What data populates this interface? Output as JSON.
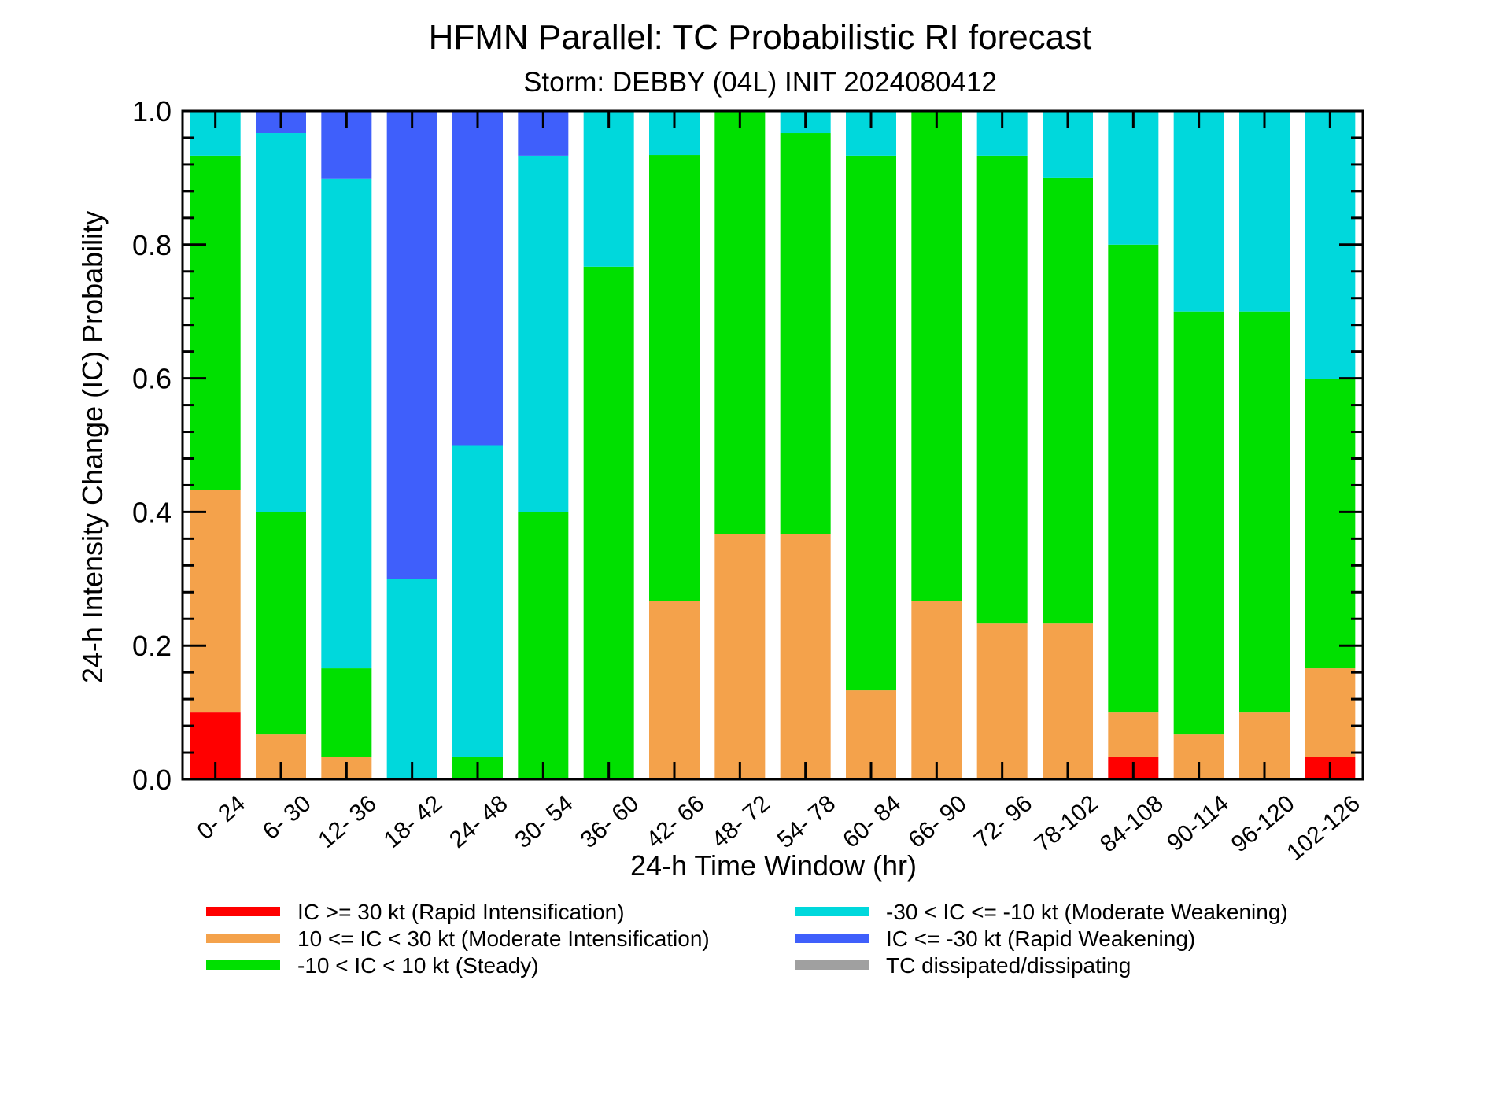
{
  "chart_data": {
    "type": "bar",
    "stacked": true,
    "title": "HFMN Parallel: TC Probabilistic RI forecast",
    "subtitle": "Storm: DEBBY (04L) INIT 2024080412",
    "xlabel": "24-h Time Window (hr)",
    "ylabel": "24-h Intensity Change (IC) Probability",
    "ylim": [
      0,
      1
    ],
    "yticks": [
      "0.0",
      "0.2",
      "0.4",
      "0.6",
      "0.8",
      "1.0"
    ],
    "grid": false,
    "legend_position": "bottom",
    "categories": [
      "0- 24",
      "6- 30",
      "12- 36",
      "18- 42",
      "24- 48",
      "30- 54",
      "36- 60",
      "42- 66",
      "48- 72",
      "54- 78",
      "60- 84",
      "66- 90",
      "72- 96",
      "78-102",
      "84-108",
      "90-114",
      "96-120",
      "102-126"
    ],
    "series": [
      {
        "name": "IC >= 30 kt (Rapid Intensification)",
        "color": "#ff0000",
        "values": [
          0.1,
          0,
          0,
          0,
          0,
          0,
          0,
          0,
          0,
          0,
          0,
          0,
          0,
          0,
          0.033,
          0,
          0,
          0.033
        ]
      },
      {
        "name": "10 <= IC < 30 kt (Moderate Intensification)",
        "color": "#f4a24b",
        "values": [
          0.333,
          0.067,
          0.033,
          0,
          0,
          0,
          0,
          0.267,
          0.367,
          0.367,
          0.133,
          0.267,
          0.233,
          0.233,
          0.067,
          0.067,
          0.1,
          0.133
        ]
      },
      {
        "name": "-10 < IC < 10 kt (Steady)",
        "color": "#00e000",
        "values": [
          0.5,
          0.333,
          0.133,
          0,
          0.033,
          0.4,
          0.767,
          0.667,
          0.633,
          0.6,
          0.8,
          0.733,
          0.7,
          0.667,
          0.7,
          0.633,
          0.6,
          0.433
        ]
      },
      {
        "name": "-30 < IC <= -10 kt (Moderate Weakening)",
        "color": "#00d8dc",
        "values": [
          0.067,
          0.567,
          0.733,
          0.3,
          0.467,
          0.533,
          0.233,
          0.067,
          0,
          0.033,
          0.067,
          0,
          0.067,
          0.1,
          0.2,
          0.3,
          0.3,
          0.4
        ]
      },
      {
        "name": "IC <= -30 kt (Rapid Weakening)",
        "color": "#3f5ffb",
        "values": [
          0,
          0.033,
          0.1,
          0.7,
          0.5,
          0.067,
          0,
          0,
          0,
          0,
          0,
          0,
          0,
          0,
          0,
          0,
          0,
          0
        ]
      },
      {
        "name": "TC dissipated/dissipating",
        "color": "#a0a0a0",
        "values": [
          0,
          0,
          0,
          0,
          0,
          0,
          0,
          0,
          0,
          0,
          0,
          0,
          0,
          0,
          0,
          0,
          0,
          0
        ]
      }
    ]
  }
}
